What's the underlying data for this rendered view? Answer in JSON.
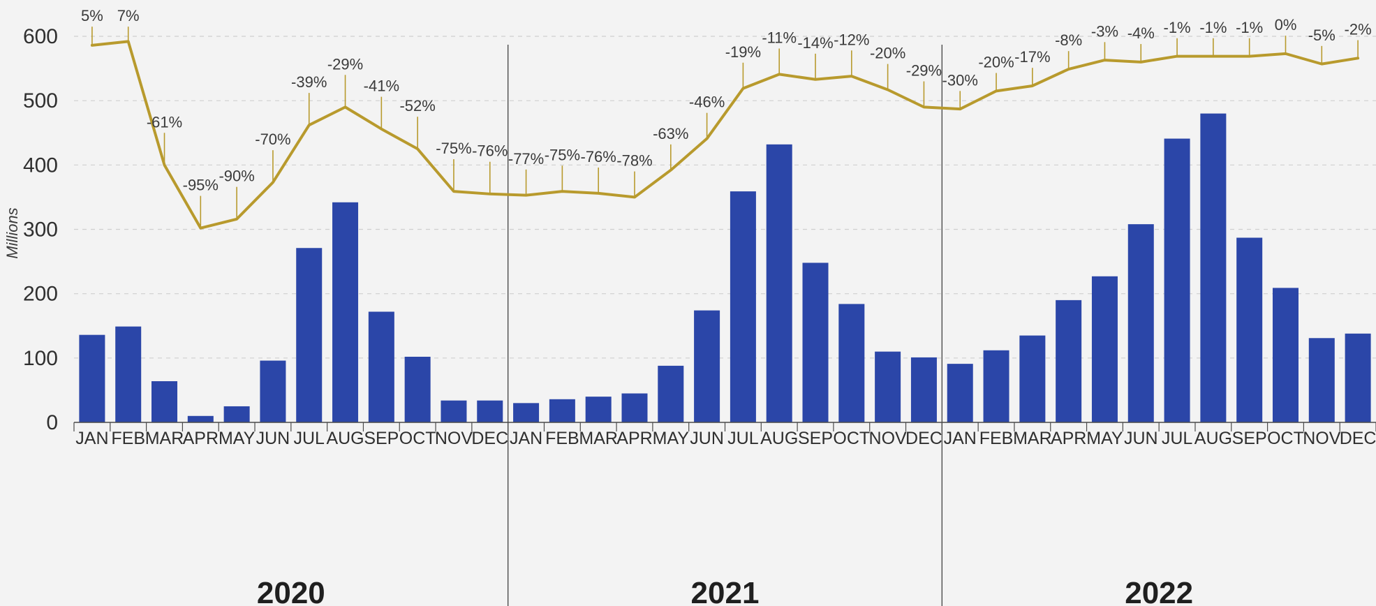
{
  "chart_data": {
    "type": "bar",
    "title": "",
    "xlabel": "",
    "ylabel": "Millions",
    "ylim": [
      0,
      600
    ],
    "yticks": [
      0,
      100,
      200,
      300,
      400,
      500,
      600
    ],
    "ytick_labels": [
      "0",
      "100",
      "200",
      "300",
      "400",
      "500",
      "600"
    ],
    "grid": true,
    "colors": {
      "bars": "#2b46a8",
      "line": "#b89a2d",
      "grid": "#cfcfcf",
      "axis": "#4a4a4a"
    },
    "year_groups": [
      {
        "year": "2020",
        "months": [
          "JAN",
          "FEB",
          "MAR",
          "APR",
          "MAY",
          "JUN",
          "JUL",
          "AUG",
          "SEP",
          "OCT",
          "NOV",
          "DEC"
        ]
      },
      {
        "year": "2021",
        "months": [
          "JAN",
          "FEB",
          "MAR",
          "APR",
          "MAY",
          "JUN",
          "JUL",
          "AUG",
          "SEP",
          "OCT",
          "NOV",
          "DEC"
        ]
      },
      {
        "year": "2022",
        "months": [
          "JAN",
          "FEB",
          "MAR",
          "APR",
          "MAY",
          "JUN",
          "JUL",
          "AUG",
          "SEP",
          "OCT",
          "NOV",
          "DEC"
        ]
      }
    ],
    "series": [
      {
        "type": "bar",
        "values": [
          136,
          149,
          64,
          10,
          25,
          96,
          271,
          342,
          172,
          102,
          34,
          34,
          30,
          36,
          40,
          45,
          88,
          174,
          359,
          432,
          248,
          184,
          110,
          101,
          91,
          112,
          135,
          190,
          227,
          308,
          441,
          480,
          287,
          209,
          131,
          138
        ]
      },
      {
        "type": "line",
        "values": [
          586,
          592,
          400,
          302,
          316,
          373,
          462,
          490,
          456,
          425,
          359,
          355,
          353,
          359,
          356,
          350,
          392,
          441,
          519,
          541,
          533,
          538,
          517,
          490,
          487,
          515,
          523,
          549,
          563,
          560,
          569,
          569,
          569,
          573,
          557,
          566
        ],
        "labels": [
          "5%",
          "7%",
          "-61%",
          "-95%",
          "-90%",
          "-70%",
          "-39%",
          "-29%",
          "-41%",
          "-52%",
          "-75%",
          "-76%",
          "-77%",
          "-75%",
          "-76%",
          "-78%",
          "-63%",
          "-46%",
          "-19%",
          "-11%",
          "-14%",
          "-12%",
          "-20%",
          "-29%",
          "-30%",
          "-20%",
          "-17%",
          "-8%",
          "-3%",
          "-4%",
          "-1%",
          "-1%",
          "-1%",
          "0%",
          "-5%",
          "-2%"
        ]
      }
    ]
  }
}
